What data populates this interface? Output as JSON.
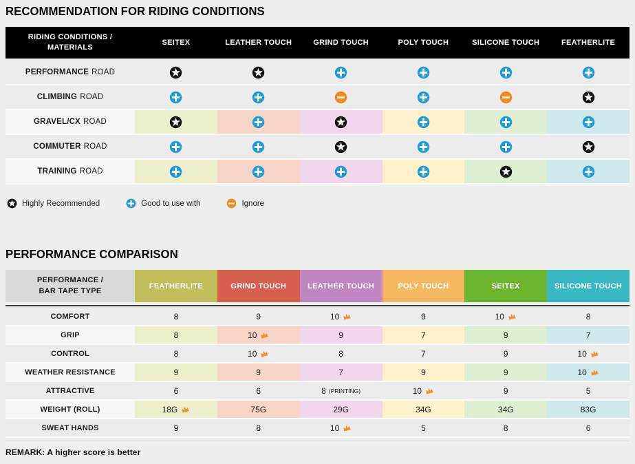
{
  "colors": {
    "page_bg": "#eef0ee",
    "row_gray": "#ececec",
    "row_light": "#f7f7f7",
    "tints": [
      "#edeecb",
      "#f6d5c6",
      "#f0d7ec",
      "#fdf2cc",
      "#ddeed2",
      "#cfe8ec"
    ],
    "icon_star_bg": "#111111",
    "icon_plus_bg": "#1e9cd7",
    "icon_minus_bg": "#ee8a1e",
    "crown": "#f0922b",
    "header1_bg": "#000000",
    "header2_label_bg": "#d9d9d9",
    "divider_dark": "#3b3b3b"
  },
  "chart_data": [
    {
      "type": "table",
      "title": "RECOMMENDATION FOR RIDING CONDITIONS",
      "columns": [
        "RIDING CONDITIONS / MATERIALS",
        "SEITEX",
        "LEATHER TOUCH",
        "GRIND TOUCH",
        "POLY TOUCH",
        "SILICONE TOUCH",
        "FEATHERLITE"
      ],
      "rows": [
        {
          "label_bold": "PERFORMANCE",
          "label_rest": "ROAD",
          "tinted": false,
          "icons": [
            "star",
            "star",
            "plus",
            "plus",
            "plus",
            "plus"
          ]
        },
        {
          "label_bold": "CLIMBING",
          "label_rest": "ROAD",
          "tinted": false,
          "icons": [
            "plus",
            "plus",
            "minus",
            "plus",
            "minus",
            "star"
          ]
        },
        {
          "label_bold": "GRAVEL/CX",
          "label_rest": "ROAD",
          "tinted": true,
          "icons": [
            "star",
            "plus",
            "star",
            "plus",
            "plus",
            "plus"
          ]
        },
        {
          "label_bold": "COMMUTER",
          "label_rest": "ROAD",
          "tinted": false,
          "icons": [
            "plus",
            "plus",
            "star",
            "plus",
            "plus",
            "star"
          ]
        },
        {
          "label_bold": "TRAINING",
          "label_rest": "ROAD",
          "tinted": true,
          "icons": [
            "plus",
            "plus",
            "plus",
            "plus",
            "star",
            "plus"
          ]
        }
      ],
      "legend": [
        {
          "icon": "star",
          "label": "Highly Recommended"
        },
        {
          "icon": "plus",
          "label": "Good to use with"
        },
        {
          "icon": "minus",
          "label": "Ignore"
        }
      ]
    },
    {
      "type": "table",
      "title": "PERFORMANCE COMPARISON",
      "label_header": "PERFORMANCE / BAR TAPE TYPE",
      "columns": [
        {
          "label": "FEATHERLITE",
          "color": "#c2be5b"
        },
        {
          "label": "GRIND TOUCH",
          "color": "#d6604e"
        },
        {
          "label": "LEATHER TOUCH",
          "color": "#bf86c0"
        },
        {
          "label": "POLY TOUCH",
          "color": "#f5b963"
        },
        {
          "label": "SEITEX",
          "color": "#6ab42e"
        },
        {
          "label": "SILICONE TOUCH",
          "color": "#39b7c3"
        }
      ],
      "rows": [
        {
          "label": "COMFORT",
          "tinted": false,
          "cells": [
            {
              "v": "8"
            },
            {
              "v": "9"
            },
            {
              "v": "10",
              "crown": true
            },
            {
              "v": "9"
            },
            {
              "v": "10",
              "crown": true
            },
            {
              "v": "8"
            }
          ]
        },
        {
          "label": "GRIP",
          "tinted": true,
          "cells": [
            {
              "v": "8"
            },
            {
              "v": "10",
              "crown": true
            },
            {
              "v": "9"
            },
            {
              "v": "7"
            },
            {
              "v": "9"
            },
            {
              "v": "7"
            }
          ]
        },
        {
          "label": "CONTROL",
          "tinted": false,
          "cells": [
            {
              "v": "8"
            },
            {
              "v": "10",
              "crown": true
            },
            {
              "v": "8"
            },
            {
              "v": "7"
            },
            {
              "v": "9"
            },
            {
              "v": "10",
              "crown": true
            }
          ]
        },
        {
          "label": "WEATHER RESISTANCE",
          "tinted": true,
          "cells": [
            {
              "v": "9"
            },
            {
              "v": "9"
            },
            {
              "v": "7"
            },
            {
              "v": "9"
            },
            {
              "v": "9"
            },
            {
              "v": "10",
              "crown": true
            }
          ]
        },
        {
          "label": "ATTRACTIVE",
          "tinted": false,
          "cells": [
            {
              "v": "6"
            },
            {
              "v": "6"
            },
            {
              "v": "8",
              "suffix": "(PRINTING)"
            },
            {
              "v": "10",
              "crown": true
            },
            {
              "v": "9"
            },
            {
              "v": "5"
            }
          ]
        },
        {
          "label": "WEIGHT (ROLL)",
          "tinted": true,
          "cells": [
            {
              "v": "18G",
              "crown": true
            },
            {
              "v": "75G"
            },
            {
              "v": "29G"
            },
            {
              "v": "34G"
            },
            {
              "v": "34G"
            },
            {
              "v": "83G"
            }
          ]
        },
        {
          "label": "SWEAT HANDS",
          "tinted": false,
          "cells": [
            {
              "v": "9"
            },
            {
              "v": "8"
            },
            {
              "v": "10",
              "crown": true
            },
            {
              "v": "5"
            },
            {
              "v": "8"
            },
            {
              "v": "6"
            }
          ]
        }
      ],
      "remark": "REMARK: A higher score is better"
    }
  ]
}
